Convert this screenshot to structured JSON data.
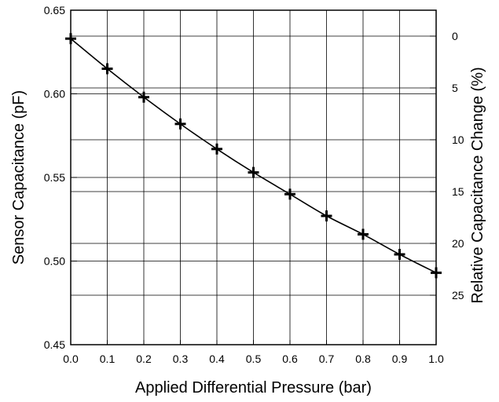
{
  "chart_data": {
    "type": "line",
    "title": "",
    "xlabel": "Applied Differential Pressure (bar)",
    "ylabel": "Sensor Capacitance (pF)",
    "y2label": "Relative Capacitance Change (%)",
    "xlim": [
      0.0,
      1.0
    ],
    "ylim": [
      0.45,
      0.65
    ],
    "y2lim": [
      0,
      29
    ],
    "y2_inverted": true,
    "grid": true,
    "x_ticks": [
      "0.0",
      "0.1",
      "0.2",
      "0.3",
      "0.4",
      "0.5",
      "0.6",
      "0.7",
      "0.8",
      "0.9",
      "1.0"
    ],
    "y_ticks": [
      "0.45",
      "0.50",
      "0.55",
      "0.60",
      "0.65"
    ],
    "y2_ticks": [
      "0",
      "5",
      "10",
      "15",
      "20",
      "25"
    ],
    "series": [
      {
        "marker": "plus",
        "x": [
          0.0,
          0.1,
          0.2,
          0.3,
          0.4,
          0.5,
          0.6,
          0.7,
          0.8,
          0.9,
          1.0
        ],
        "y": [
          0.633,
          0.615,
          0.598,
          0.582,
          0.567,
          0.553,
          0.54,
          0.527,
          0.516,
          0.504,
          0.493
        ]
      }
    ]
  }
}
